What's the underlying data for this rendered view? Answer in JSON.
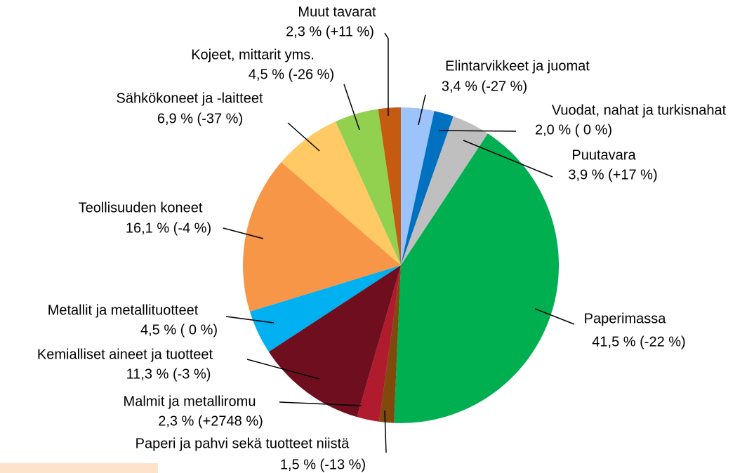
{
  "chart_data": {
    "type": "pie",
    "categories": [
      "Elintarvikkeet ja juomat",
      "Vuodat, nahat ja turkisnahat",
      "Puutavara",
      "Paperimassa",
      "Paperi ja pahvi sekä tuotteet niistä",
      "Malmit ja metalliromu",
      "Kemialliset aineet ja tuotteet",
      "Metallit ja metallituotteet",
      "Teollisuuden koneet",
      "Sähkökoneet ja -laitteet",
      "Kojeet, mittarit yms.",
      "Muut tavarat"
    ],
    "values": [
      3.4,
      2.0,
      3.9,
      41.5,
      1.5,
      2.3,
      11.3,
      4.5,
      16.1,
      6.9,
      4.5,
      2.3
    ],
    "value_labels": [
      "3,4 % (-27 %)",
      "2,0 % ( 0 %)",
      "3,9 % (+17 %)",
      "41,5 % (-22 %)",
      "1,5 % (-13 %)",
      "2,3 % (+2748 %)",
      "11,3 % (-3 %)",
      "4,5 % ( 0 %)",
      "16,1 % (-4 %)",
      "6,9 % (-37 %)",
      "4,5 % (-26 %)",
      "2,3 % (+11 %)"
    ],
    "colors": [
      "#9dc3fb",
      "#0070c0",
      "#bfbfbf",
      "#00b050",
      "#7f4a0c",
      "#b01c2e",
      "#6e0e1e",
      "#00b0f0",
      "#f79646",
      "#ffc966",
      "#92d050",
      "#c55a11"
    ]
  }
}
